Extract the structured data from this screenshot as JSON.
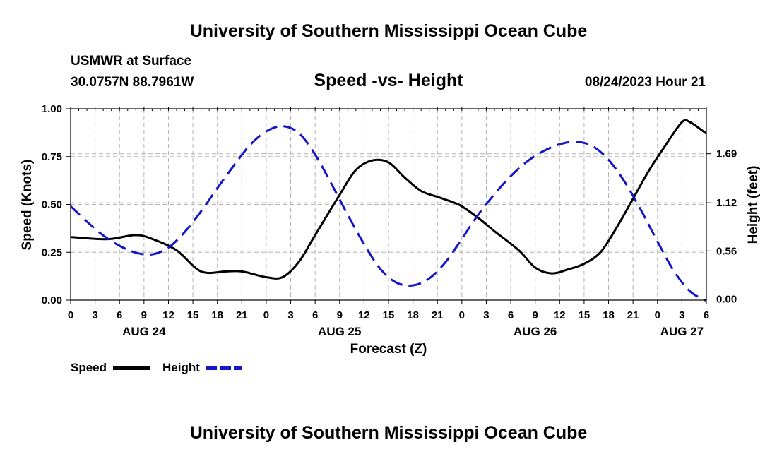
{
  "header": {
    "title": "University of Southern Mississippi Ocean Cube",
    "station": "USMWR at Surface",
    "coordinates": "30.0757N  88.7961W",
    "chart_title": "Speed -vs- Height",
    "datetime": "08/24/2023 Hour 21"
  },
  "footer": {
    "title": "University of Southern Mississippi Ocean Cube"
  },
  "colors": {
    "speed": "#000000",
    "height": "#1414c8",
    "grid": "#b4b4b4"
  },
  "chart_data": {
    "type": "line",
    "title": "Speed -vs- Height",
    "xlabel": "Forecast (Z)",
    "ylabel_left": "Speed (Knots)",
    "ylabel_right": "Height (feet)",
    "x_unit": "hours since 2023-08-24 00Z",
    "xlim": [
      0,
      78
    ],
    "ylim_left": [
      0,
      1.0
    ],
    "ylim_right": [
      -0.012,
      2.213
    ],
    "x_ticks": [
      0,
      3,
      6,
      9,
      12,
      15,
      18,
      21,
      24,
      27,
      30,
      33,
      36,
      39,
      42,
      45,
      48,
      51,
      54,
      57,
      60,
      63,
      66,
      69,
      72,
      75,
      78
    ],
    "x_tick_labels": [
      "0",
      "3",
      "6",
      "9",
      "12",
      "15",
      "18",
      "21",
      "0",
      "3",
      "6",
      "9",
      "12",
      "15",
      "18",
      "21",
      "0",
      "3",
      "6",
      "9",
      "12",
      "15",
      "18",
      "21",
      "0",
      "3",
      "6"
    ],
    "date_labels": [
      {
        "x": 9,
        "label": "AUG 24"
      },
      {
        "x": 33,
        "label": "AUG 25"
      },
      {
        "x": 57,
        "label": "AUG 26"
      },
      {
        "x": 75,
        "label": "AUG 27"
      }
    ],
    "left_ticks": [
      0.0,
      0.25,
      0.5,
      0.75,
      1.0
    ],
    "left_tick_labels": [
      "0.00",
      "0.25",
      "0.50",
      "0.75",
      "1.00"
    ],
    "right_ticks": [
      0.0,
      0.56,
      1.12,
      1.69
    ],
    "right_tick_labels": [
      "0.00",
      "0.56",
      "1.12",
      "1.69"
    ],
    "series": [
      {
        "name": "Speed",
        "axis": "left",
        "style": "solid",
        "x": [
          0,
          3,
          5,
          8,
          10,
          13,
          16,
          19,
          21,
          24,
          26,
          28,
          30,
          33,
          35,
          37,
          39,
          41,
          43,
          45,
          47,
          48,
          50,
          52,
          55,
          57,
          59,
          61,
          63,
          65,
          67,
          69,
          71,
          73,
          75,
          76,
          78
        ],
        "y": [
          0.33,
          0.32,
          0.32,
          0.34,
          0.32,
          0.26,
          0.15,
          0.15,
          0.15,
          0.12,
          0.12,
          0.2,
          0.34,
          0.55,
          0.68,
          0.73,
          0.72,
          0.64,
          0.57,
          0.54,
          0.51,
          0.49,
          0.43,
          0.36,
          0.26,
          0.17,
          0.14,
          0.16,
          0.19,
          0.25,
          0.38,
          0.53,
          0.68,
          0.81,
          0.93,
          0.93,
          0.87
        ]
      },
      {
        "name": "Height",
        "axis": "right",
        "style": "dashed",
        "x": [
          0,
          2,
          4,
          6,
          8,
          10,
          12,
          14,
          16,
          18,
          20,
          22,
          24,
          26,
          28,
          30,
          32,
          34,
          36,
          38,
          40,
          42,
          44,
          46,
          48,
          50,
          52,
          54,
          56,
          58,
          60,
          62,
          64,
          66,
          68,
          70,
          72,
          74,
          76,
          78
        ],
        "y": [
          1.08,
          0.9,
          0.74,
          0.62,
          0.54,
          0.52,
          0.6,
          0.78,
          1.02,
          1.29,
          1.55,
          1.79,
          1.95,
          2.01,
          1.93,
          1.68,
          1.34,
          0.98,
          0.64,
          0.35,
          0.19,
          0.16,
          0.24,
          0.43,
          0.7,
          0.98,
          1.22,
          1.43,
          1.6,
          1.72,
          1.8,
          1.83,
          1.78,
          1.62,
          1.36,
          1.03,
          0.67,
          0.33,
          0.09,
          -0.02
        ]
      }
    ],
    "legend": {
      "position": "bottom-left",
      "entries": [
        "Speed",
        "Height"
      ]
    }
  }
}
